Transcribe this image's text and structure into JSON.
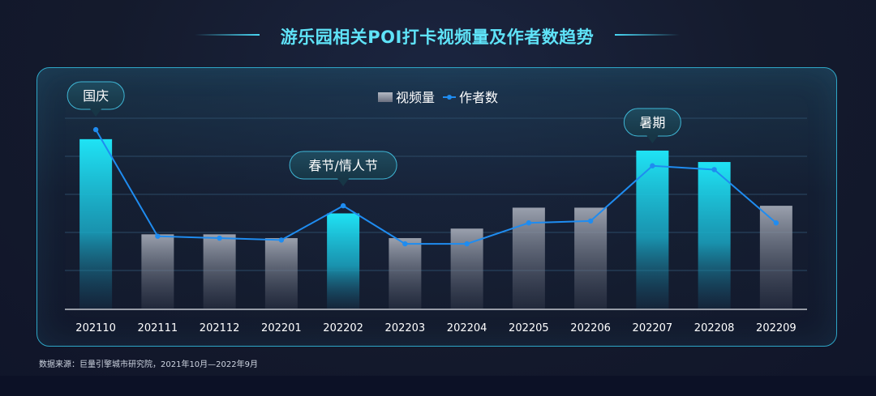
{
  "title": "游乐园相关POI打卡视频量及作者数趋势",
  "source": "数据来源：巨量引擎城市研究院，2021年10月—2022年9月",
  "colors": {
    "highlight_bar": "#1fe3f5",
    "normal_bar": "#9aa0ad",
    "line": "#1f8cf0",
    "axis": "#e6eaf0",
    "grid": "#2b4a66"
  },
  "chart_data": {
    "type": "bar",
    "categories": [
      "202110",
      "202111",
      "202112",
      "202201",
      "202202",
      "202203",
      "202204",
      "202205",
      "202206",
      "202207",
      "202208",
      "202209"
    ],
    "ylim": [
      0,
      100
    ],
    "grid": true,
    "legend": "top-center",
    "series": [
      {
        "name": "视频量",
        "kind": "bar",
        "values": [
          89,
          39,
          39,
          37,
          50,
          37,
          42,
          53,
          53,
          83,
          77,
          54
        ],
        "highlight": [
          true,
          false,
          false,
          false,
          true,
          false,
          false,
          false,
          false,
          true,
          true,
          false
        ]
      },
      {
        "name": "作者数",
        "kind": "line",
        "values": [
          94,
          38,
          37,
          36,
          54,
          34,
          34,
          45,
          46,
          75,
          73,
          45
        ]
      }
    ],
    "annotations": [
      {
        "text": "国庆",
        "category_index": 0
      },
      {
        "text": "春节/情人节",
        "category_index": 4
      },
      {
        "text": "暑期",
        "category_index": 9
      }
    ]
  }
}
